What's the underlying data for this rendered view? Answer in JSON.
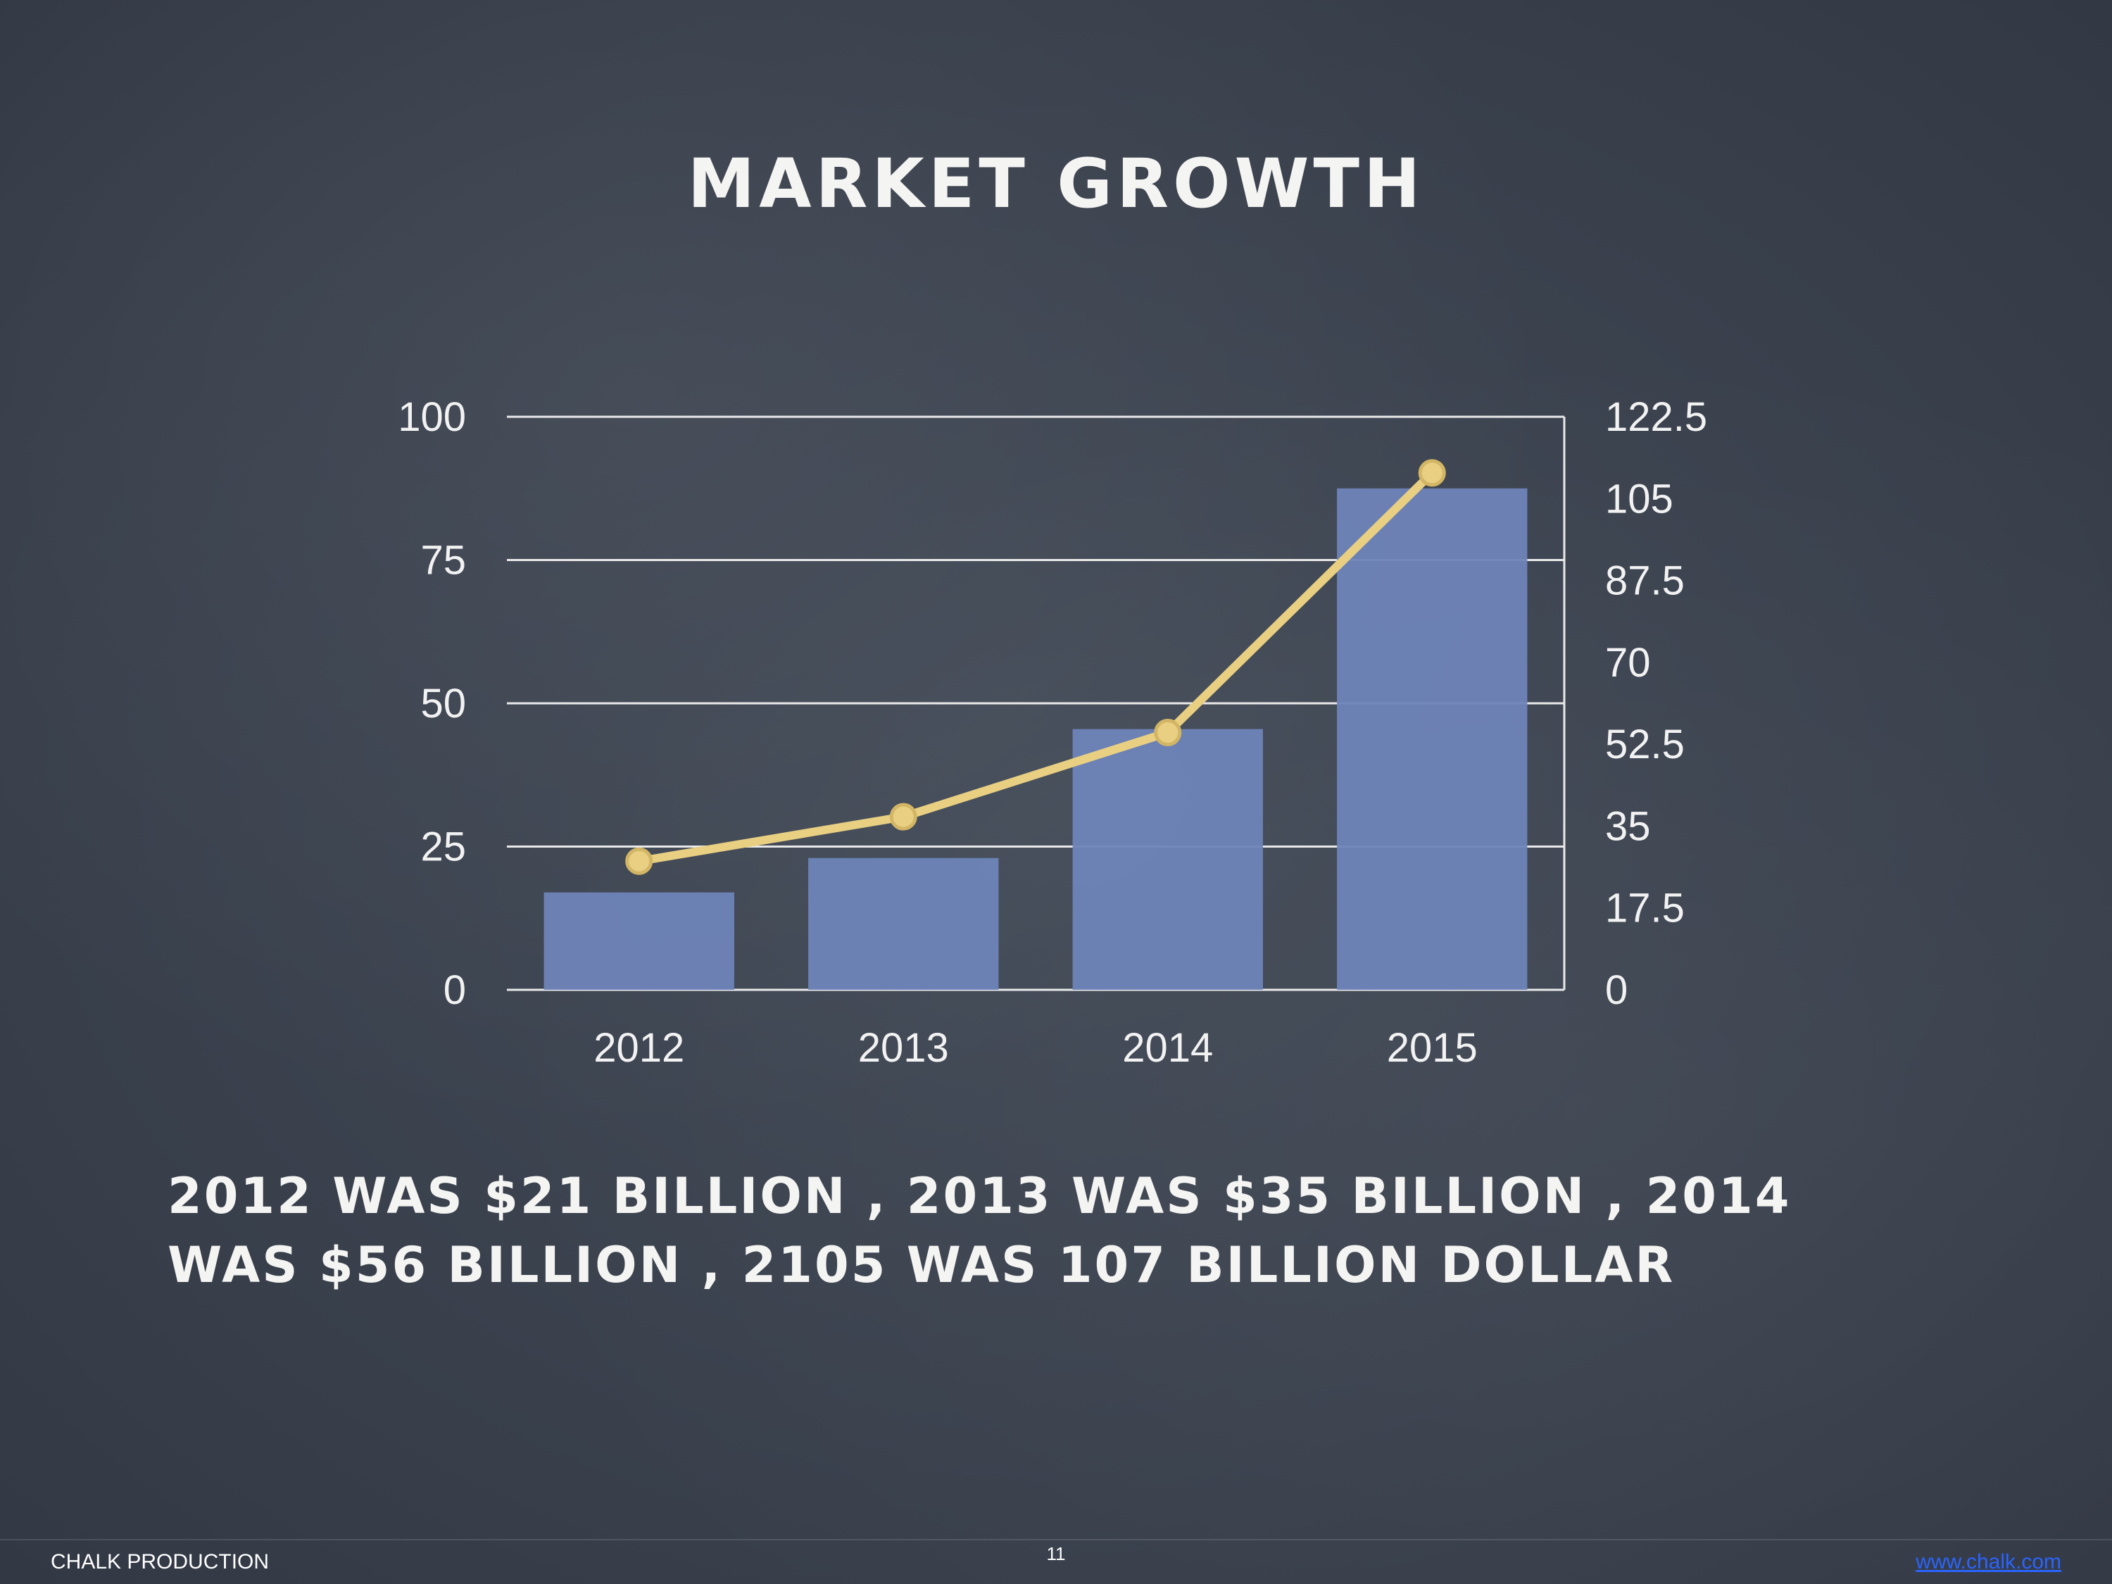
{
  "slide": {
    "title": "Market Growth",
    "caption": "2012 was $21 billion , 2013 was $35 billion , 2014 was $56 billion , 2105 was 107 billion dollar",
    "page_number": "11",
    "footer_left": "CHALK PRODUCTION",
    "footer_link": "www.chalk.com"
  },
  "colors": {
    "bar": "#6f84b8",
    "line": "#e8cf82",
    "grid": "#e9e9e9",
    "text": "#f2f2f2"
  },
  "chart_data": {
    "type": "bar",
    "categories": [
      "2012",
      "2013",
      "2014",
      "2015"
    ],
    "series": [
      {
        "type": "bar",
        "axis": "left",
        "values": [
          17,
          23,
          45.5,
          87.5
        ]
      },
      {
        "type": "line",
        "axis": "right",
        "values": [
          27.5,
          37,
          55,
          110.5
        ]
      }
    ],
    "y_left": {
      "min": 0,
      "max": 100,
      "ticks": [
        "0",
        "25",
        "50",
        "75",
        "100"
      ]
    },
    "y_right": {
      "min": 0,
      "max": 122.5,
      "ticks": [
        "0",
        "17.5",
        "35",
        "52.5",
        "70",
        "87.5",
        "105",
        "122.5"
      ]
    },
    "grid": true,
    "legend": "none"
  }
}
